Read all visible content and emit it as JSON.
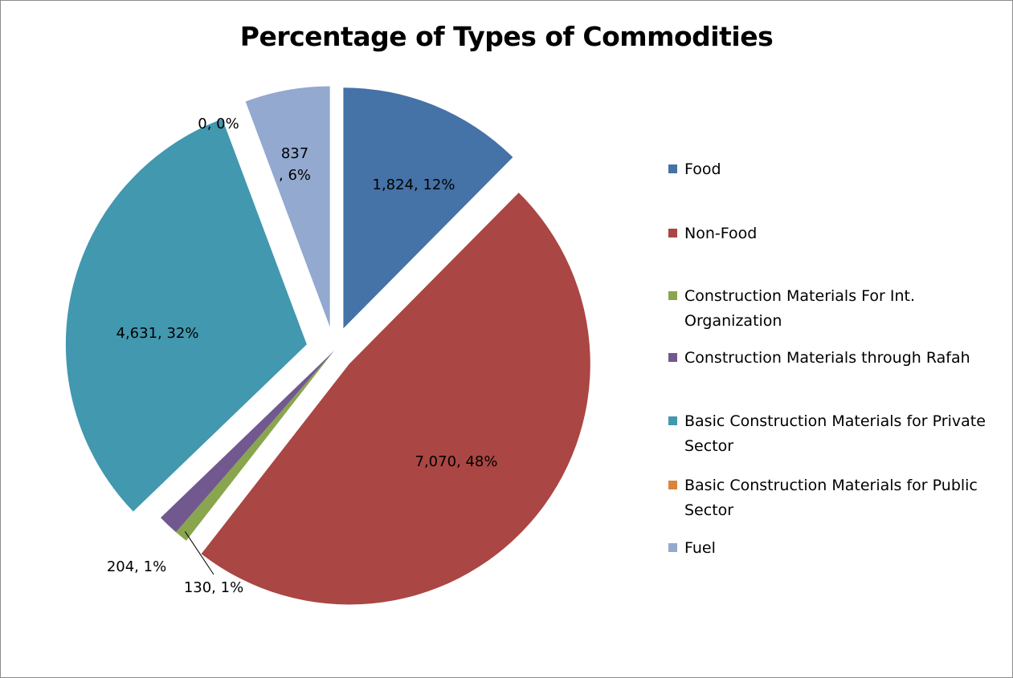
{
  "chart_data": {
    "type": "pie",
    "title": "Percentage of Types of Commodities",
    "legend_position": "right",
    "slices": [
      {
        "name": "Food",
        "value": 1824,
        "percent": 12,
        "label": "1,824, 12%",
        "color": "#4572A7"
      },
      {
        "name": "Non-Food",
        "value": 7070,
        "percent": 48,
        "label": "7,070, 48%",
        "color": "#AA4643"
      },
      {
        "name": "Construction Materials For Int. Organization",
        "value": 130,
        "percent": 1,
        "label": "130, 1%",
        "color": "#89A54E"
      },
      {
        "name": "Construction Materials through Rafah",
        "value": 204,
        "percent": 1,
        "label": "204, 1%",
        "color": "#71588F"
      },
      {
        "name": "Basic Construction Materials for Private Sector",
        "value": 4631,
        "percent": 32,
        "label": "4,631, 32%",
        "color": "#4198AF"
      },
      {
        "name": "Basic Construction Materials for Public Sector",
        "value": 0,
        "percent": 0,
        "label": "0, 0%",
        "color": "#DB843D"
      },
      {
        "name": "Fuel",
        "value": 837,
        "percent": 6,
        "label": "837\n, 6%",
        "color": "#93A9CF"
      }
    ]
  }
}
